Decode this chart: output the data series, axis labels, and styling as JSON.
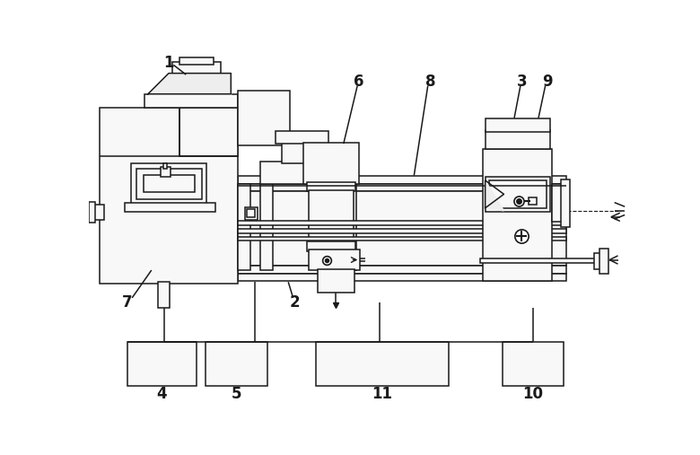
{
  "bg": "#ffffff",
  "lc": "#1a1a1a",
  "fc_light": "#f8f8f8",
  "fc_mid": "#eeeeee",
  "lw": 1.1,
  "lw2": 1.6
}
